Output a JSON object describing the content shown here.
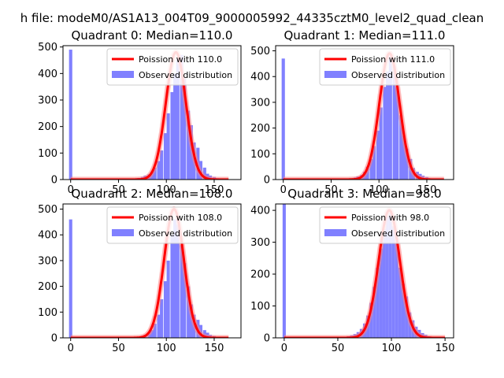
{
  "figure": {
    "suptitle": "h file: modeM0/AS1A13_004T09_9000005992_44335cztM0_level2_quad_clean"
  },
  "colors": {
    "histogram": "#8080ff",
    "poisson_curve": "#ff0000",
    "poisson_glow": "#ff8080"
  },
  "chart_data": [
    {
      "type": "bar",
      "title": "Quadrant 0: Median=110.0",
      "legend_placement": "top-right",
      "legend": {
        "curve": "Poission with 110.0",
        "histogram": "Observed distribution"
      },
      "xlim": [
        -8,
        178
      ],
      "ylim": [
        0,
        505
      ],
      "xticks": [
        0,
        50,
        100,
        150
      ],
      "yticks": [
        0,
        100,
        200,
        300,
        400,
        500
      ],
      "bin_width": 3.4,
      "zero_bin": 490,
      "bins": [
        [
          68,
          3
        ],
        [
          71,
          6
        ],
        [
          75,
          10
        ],
        [
          78,
          15
        ],
        [
          82,
          20
        ],
        [
          85,
          30
        ],
        [
          88,
          45
        ],
        [
          92,
          70
        ],
        [
          95,
          110
        ],
        [
          99,
          175
        ],
        [
          102,
          250
        ],
        [
          106,
          330
        ],
        [
          109,
          400
        ],
        [
          112,
          455
        ],
        [
          116,
          470
        ],
        [
          119,
          380
        ],
        [
          123,
          260
        ],
        [
          126,
          205
        ],
        [
          129,
          140
        ],
        [
          133,
          120
        ],
        [
          136,
          70
        ],
        [
          140,
          45
        ],
        [
          143,
          22
        ],
        [
          146,
          15
        ],
        [
          150,
          10
        ],
        [
          153,
          5
        ]
      ],
      "poisson_mean": 110.0,
      "poisson_peak": 480,
      "poisson_range": [
        0,
        165
      ]
    },
    {
      "type": "bar",
      "title": "Quadrant 1: Median=111.0",
      "legend_placement": "top-right",
      "legend": {
        "curve": "Poission with 111.0",
        "histogram": "Observed distribution"
      },
      "xlim": [
        -8,
        178
      ],
      "ylim": [
        0,
        520
      ],
      "xticks": [
        0,
        50,
        100,
        150
      ],
      "yticks": [
        0,
        100,
        200,
        300,
        400,
        500
      ],
      "bin_width": 3.4,
      "zero_bin": 470,
      "bins": [
        [
          68,
          3
        ],
        [
          71,
          5
        ],
        [
          75,
          8
        ],
        [
          78,
          12
        ],
        [
          82,
          18
        ],
        [
          85,
          30
        ],
        [
          88,
          50
        ],
        [
          92,
          80
        ],
        [
          95,
          130
        ],
        [
          99,
          190
        ],
        [
          102,
          280
        ],
        [
          106,
          360
        ],
        [
          109,
          420
        ],
        [
          112,
          480
        ],
        [
          116,
          440
        ],
        [
          119,
          360
        ],
        [
          123,
          250
        ],
        [
          126,
          170
        ],
        [
          129,
          120
        ],
        [
          133,
          80
        ],
        [
          136,
          45
        ],
        [
          140,
          30
        ],
        [
          143,
          22
        ],
        [
          146,
          15
        ],
        [
          150,
          10
        ],
        [
          153,
          5
        ]
      ],
      "poisson_mean": 111.0,
      "poisson_peak": 490,
      "poisson_range": [
        0,
        168
      ]
    },
    {
      "type": "bar",
      "title": "Quadrant 2: Median=108.0",
      "legend_placement": "top-right",
      "legend": {
        "curve": "Poission with 108.0",
        "histogram": "Observed distribution"
      },
      "xlim": [
        -8,
        178
      ],
      "ylim": [
        0,
        520
      ],
      "xticks": [
        0,
        50,
        100,
        150
      ],
      "yticks": [
        0,
        100,
        200,
        300,
        400,
        500
      ],
      "bin_width": 3.4,
      "zero_bin": 460,
      "bins": [
        [
          68,
          3
        ],
        [
          71,
          5
        ],
        [
          75,
          8
        ],
        [
          78,
          12
        ],
        [
          82,
          20
        ],
        [
          85,
          30
        ],
        [
          88,
          55
        ],
        [
          92,
          90
        ],
        [
          95,
          150
        ],
        [
          99,
          220
        ],
        [
          102,
          300
        ],
        [
          106,
          400
        ],
        [
          109,
          460
        ],
        [
          112,
          440
        ],
        [
          116,
          360
        ],
        [
          119,
          290
        ],
        [
          123,
          200
        ],
        [
          126,
          130
        ],
        [
          129,
          90
        ],
        [
          133,
          70
        ],
        [
          136,
          50
        ],
        [
          140,
          30
        ],
        [
          143,
          20
        ],
        [
          146,
          12
        ],
        [
          150,
          7
        ],
        [
          153,
          4
        ]
      ],
      "poisson_mean": 108.0,
      "poisson_peak": 500,
      "poisson_range": [
        0,
        165
      ]
    },
    {
      "type": "bar",
      "title": "Quadrant 3: Median=98.0",
      "legend_placement": "top-right",
      "legend": {
        "curve": "Poission with 98.0",
        "histogram": "Observed distribution"
      },
      "xlim": [
        -8,
        158
      ],
      "ylim": [
        0,
        420
      ],
      "xticks": [
        0,
        50,
        100,
        150
      ],
      "yticks": [
        0,
        100,
        200,
        300,
        400
      ],
      "bin_width": 3.0,
      "zero_bin": 420,
      "bins": [
        [
          60,
          5
        ],
        [
          63,
          8
        ],
        [
          66,
          12
        ],
        [
          69,
          18
        ],
        [
          72,
          28
        ],
        [
          75,
          45
        ],
        [
          78,
          70
        ],
        [
          81,
          110
        ],
        [
          84,
          160
        ],
        [
          87,
          220
        ],
        [
          90,
          280
        ],
        [
          93,
          340
        ],
        [
          96,
          380
        ],
        [
          99,
          390
        ],
        [
          102,
          350
        ],
        [
          105,
          300
        ],
        [
          108,
          220
        ],
        [
          111,
          170
        ],
        [
          114,
          130
        ],
        [
          117,
          80
        ],
        [
          120,
          55
        ],
        [
          123,
          35
        ],
        [
          126,
          25
        ],
        [
          129,
          15
        ],
        [
          132,
          10
        ],
        [
          135,
          5
        ]
      ],
      "poisson_mean": 98.0,
      "poisson_peak": 400,
      "poisson_range": [
        0,
        150
      ]
    }
  ]
}
